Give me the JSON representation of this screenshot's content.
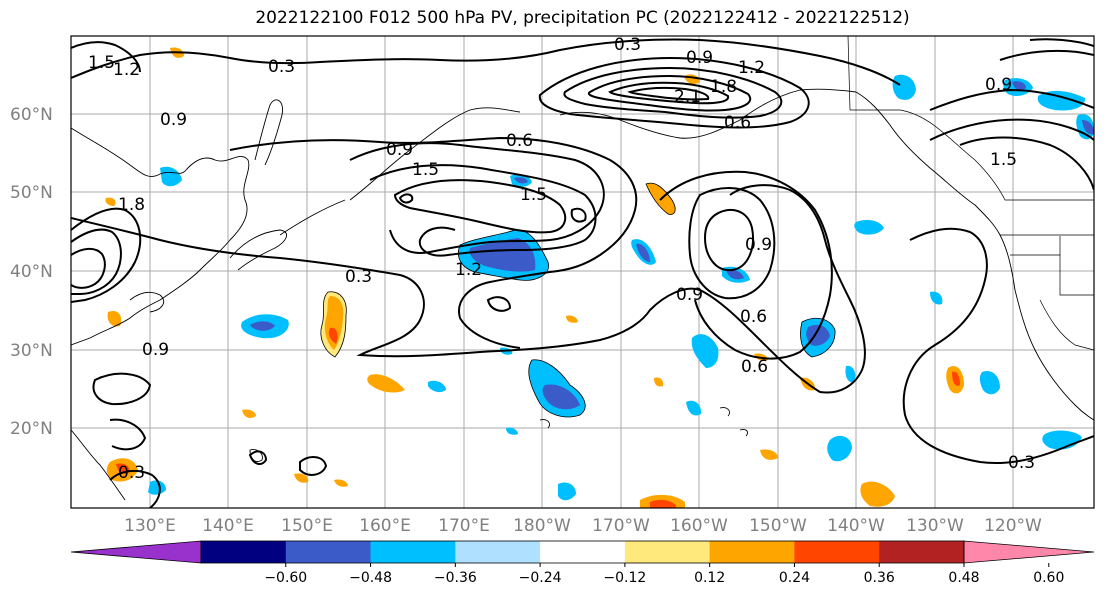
{
  "title": "2022122100 F012 500 hPa PV, precipitation PC (2022122412 - 2022122512)",
  "lat_labels": [
    "60°N",
    "50°N",
    "40°N",
    "30°N",
    "20°N"
  ],
  "lon_labels": [
    "130°E",
    "140°E",
    "150°E",
    "160°E",
    "170°E",
    "180°W",
    "170°W",
    "160°W",
    "150°W",
    "140°W",
    "130°W",
    "120°W"
  ],
  "contour_labels": [
    "1.5",
    "1.2",
    "0.3",
    "0.3",
    "0.9",
    "1.2",
    "1.8",
    "2.1",
    "0.6",
    "0.9",
    "0.6",
    "1.5",
    "1.5",
    "0.9",
    "1.8",
    "1.5",
    "0.9",
    "1.2",
    "0.3",
    "0.9",
    "0.6",
    "0.9",
    "0.6",
    "0.9",
    "0.3",
    "0.3"
  ],
  "colorbar": {
    "tick_labels": [
      "−0.60",
      "−0.48",
      "−0.36",
      "−0.24",
      "−0.12",
      "0.12",
      "0.24",
      "0.36",
      "0.48",
      "0.60"
    ],
    "colors": [
      "#9932CC",
      "#000080",
      "#3A5BC8",
      "#00BFFF",
      "#B0E0FF",
      "#FFFFFF",
      "#FFE87C",
      "#FFA500",
      "#FF4500",
      "#B22222",
      "#FF88AA"
    ]
  }
}
